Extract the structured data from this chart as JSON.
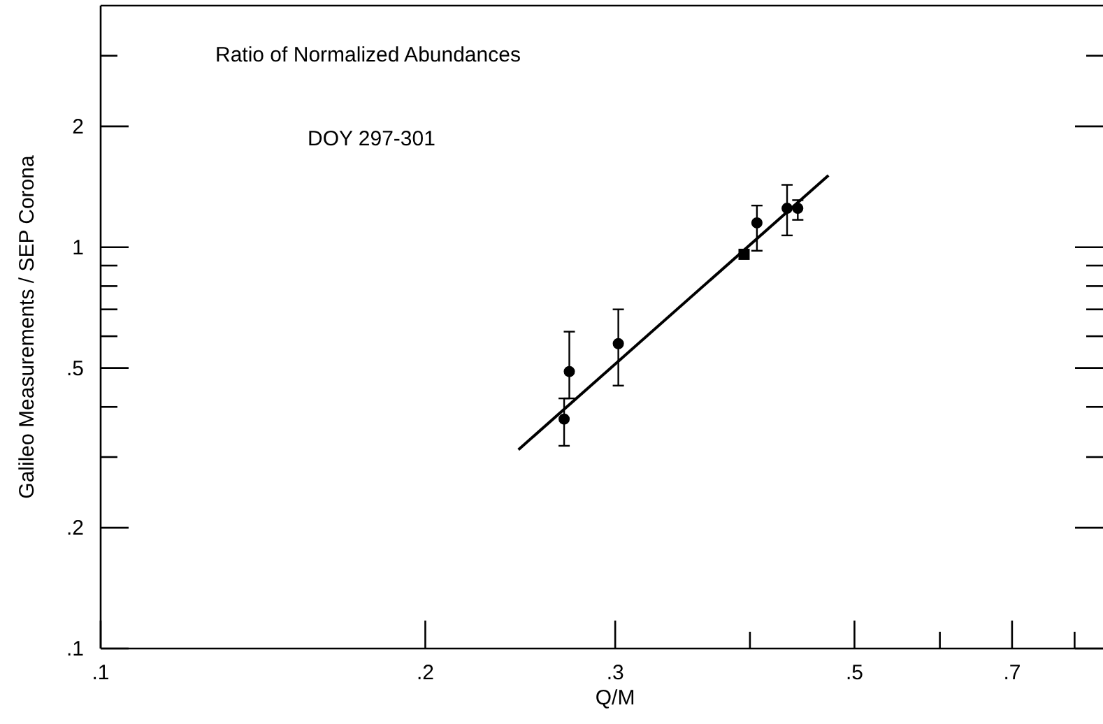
{
  "chart_data": {
    "type": "scatter",
    "title": "Ratio of Normalized Abundances",
    "annotations": [
      "DOY 297-301"
    ],
    "xlabel": "Q/M",
    "ylabel": "Galileo Measurements / SEP Corona",
    "log": "xy",
    "grid": false,
    "marker": "circle",
    "xlim": [
      0.1,
      0.85
    ],
    "ylim": [
      0.1,
      4
    ],
    "xticks": [
      {
        "value": 0.1,
        "label": ".1"
      },
      {
        "value": 0.2,
        "label": ".2"
      },
      {
        "value": 0.3,
        "label": ".3"
      },
      {
        "value": 0.4,
        "label": null
      },
      {
        "value": 0.5,
        "label": ".5"
      },
      {
        "value": 0.6,
        "label": null
      },
      {
        "value": 0.7,
        "label": ".7"
      },
      {
        "value": 0.8,
        "label": null
      }
    ],
    "yticks": [
      {
        "value": 0.1,
        "label": ".1"
      },
      {
        "value": 0.2,
        "label": ".2"
      },
      {
        "value": 0.3,
        "label": null
      },
      {
        "value": 0.4,
        "label": null
      },
      {
        "value": 0.5,
        "label": ".5"
      },
      {
        "value": 0.6,
        "label": null
      },
      {
        "value": 0.7,
        "label": null
      },
      {
        "value": 0.8,
        "label": null
      },
      {
        "value": 0.9,
        "label": null
      },
      {
        "value": 1,
        "label": "1"
      },
      {
        "value": 2,
        "label": "2"
      },
      {
        "value": 3,
        "label": null
      }
    ],
    "series": [
      {
        "color": "#000000",
        "x": [
          0.269,
          0.272,
          0.302,
          0.406,
          0.433,
          0.443
        ],
        "values": [
          0.373,
          0.49,
          0.575,
          1.15,
          1.25,
          1.25
        ],
        "errors": [
          [
            0.32,
            0.42
          ],
          [
            0.42,
            0.616
          ],
          [
            0.452,
            0.7
          ],
          [
            0.98,
            1.27
          ],
          [
            1.07,
            1.43
          ],
          [
            1.17,
            1.31
          ]
        ]
      },
      {
        "type": "scatter",
        "color": "#000000",
        "marker": "square",
        "x": [
          0.395
        ],
        "values": [
          0.96
        ]
      },
      {
        "type": "line",
        "color": "#000000",
        "marker": "none",
        "line_style": "solid",
        "x": [
          0.244,
          0.473
        ],
        "values": [
          0.313,
          1.51
        ]
      }
    ]
  }
}
